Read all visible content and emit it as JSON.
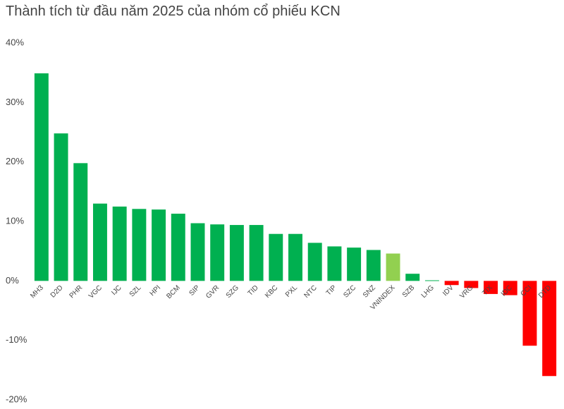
{
  "chart_data": {
    "type": "bar",
    "title": "Thành tích từ đầu năm 2025 của nhóm cổ phiếu KCN",
    "categories": [
      "MH3",
      "D2D",
      "PHR",
      "VGC",
      "IJC",
      "SZL",
      "HPI",
      "BCM",
      "SIP",
      "GVR",
      "SZG",
      "TID",
      "KBC",
      "PXL",
      "NTC",
      "TIP",
      "SZC",
      "SNZ",
      "VNINDEX",
      "SZB",
      "LHG",
      "IDV",
      "VRG",
      "TIX",
      "IDC",
      "CCI",
      "DTD"
    ],
    "values": [
      34.9,
      24.8,
      19.8,
      13.0,
      12.5,
      12.1,
      12.0,
      11.3,
      9.7,
      9.5,
      9.4,
      9.4,
      7.9,
      7.9,
      6.4,
      5.8,
      5.6,
      5.2,
      4.6,
      1.2,
      0.1,
      -0.7,
      -1.2,
      -2.2,
      -2.4,
      -10.9,
      -16.0
    ],
    "colors": [
      "#00b050",
      "#00b050",
      "#00b050",
      "#00b050",
      "#00b050",
      "#00b050",
      "#00b050",
      "#00b050",
      "#00b050",
      "#00b050",
      "#00b050",
      "#00b050",
      "#00b050",
      "#00b050",
      "#00b050",
      "#00b050",
      "#00b050",
      "#00b050",
      "#92d050",
      "#00b050",
      "#00b050",
      "#ff0000",
      "#ff0000",
      "#ff0000",
      "#ff0000",
      "#ff0000",
      "#ff0000"
    ],
    "ylim": [
      -20,
      40
    ],
    "yticks": [
      {
        "value": -20,
        "label": "-20%"
      },
      {
        "value": -10,
        "label": "-10%"
      },
      {
        "value": 0,
        "label": "0%"
      },
      {
        "value": 10,
        "label": "10%"
      },
      {
        "value": 20,
        "label": "20%"
      },
      {
        "value": 30,
        "label": "30%"
      },
      {
        "value": 40,
        "label": "40%"
      }
    ]
  }
}
